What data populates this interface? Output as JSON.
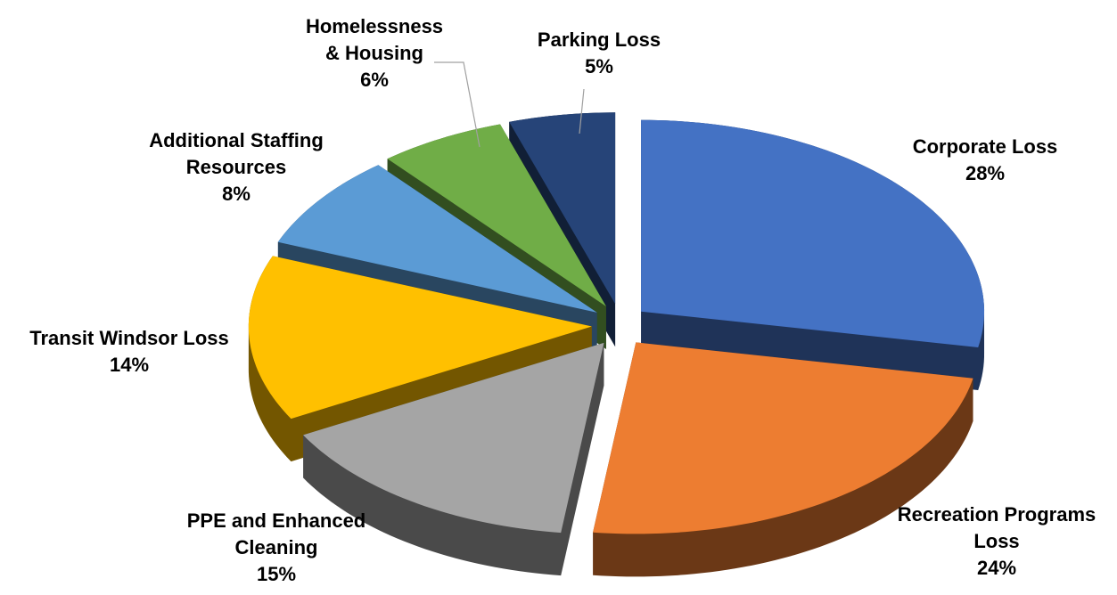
{
  "chart_data": {
    "type": "pie",
    "categories": [
      "Corporate Loss",
      "Recreation Programs Loss",
      "PPE and Enhanced Cleaning",
      "Transit Windsor Loss",
      "Additional Staffing Resources",
      "Homelessness & Housing",
      "Parking Loss"
    ],
    "values": [
      28,
      24,
      15,
      14,
      8,
      6,
      5
    ],
    "value_labels": [
      "28%",
      "24%",
      "15%",
      "14%",
      "8%",
      "6%",
      "5%"
    ],
    "colors": [
      "#4472c4",
      "#ed7d31",
      "#a5a5a5",
      "#ffc000",
      "#5b9bd5",
      "#70ad47",
      "#264478"
    ]
  }
}
